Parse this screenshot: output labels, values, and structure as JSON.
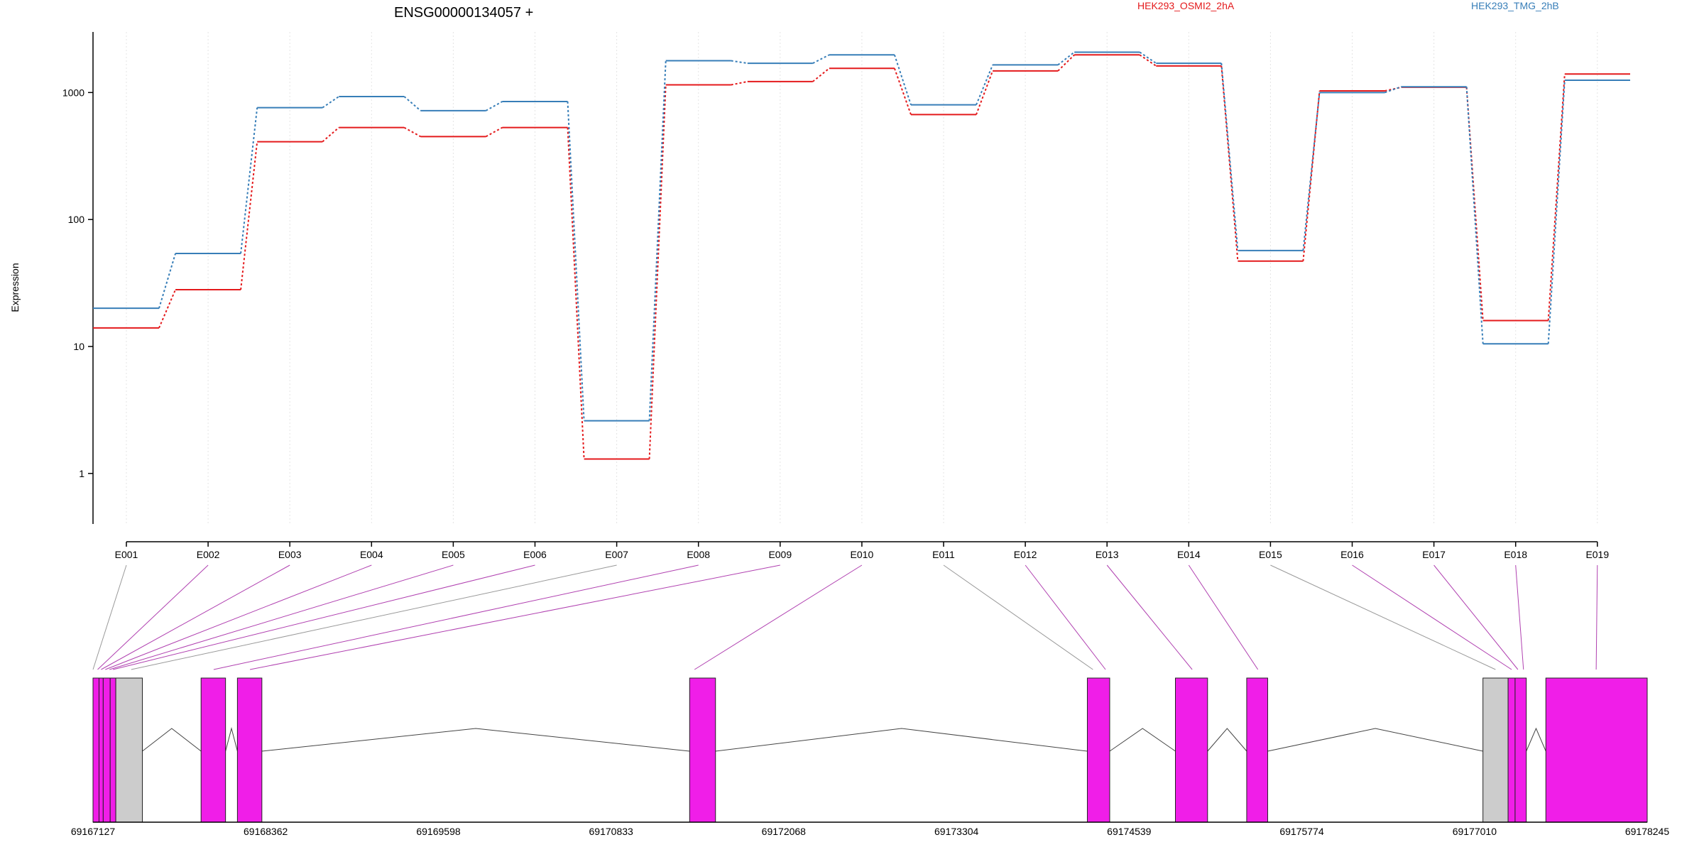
{
  "chart_data": {
    "type": "line",
    "title": "ENSG00000134057 +",
    "ylabel": "Expression",
    "xlabel": "",
    "y_scale": "log",
    "ylim": [
      0.4,
      3000
    ],
    "y_ticks": [
      1,
      10,
      100,
      1000
    ],
    "y_tick_labels": [
      "1",
      "10",
      "100",
      "1000"
    ],
    "grid": "vertical dotted at exons",
    "legend_placement": "top-right",
    "categories": [
      "E001",
      "E002",
      "E003",
      "E004",
      "E005",
      "E006",
      "E007",
      "E008",
      "E009",
      "E010",
      "E011",
      "E012",
      "E013",
      "E014",
      "E015",
      "E016",
      "E017",
      "E018",
      "E019"
    ],
    "series": [
      {
        "name": "HEK293_OSMI2_2hA",
        "color": "#e41a1c",
        "values": [
          14,
          28,
          410,
          530,
          450,
          530,
          1.3,
          1150,
          1220,
          1550,
          670,
          1480,
          1980,
          1620,
          47,
          1030,
          1100,
          16,
          1400
        ]
      },
      {
        "name": "HEK293_TMG_2hB",
        "color": "#377eb8",
        "values": [
          20,
          54,
          760,
          930,
          720,
          850,
          2.6,
          1780,
          1700,
          1980,
          800,
          1650,
          2080,
          1700,
          57,
          1000,
          1110,
          10.5,
          1250
        ]
      }
    ],
    "gene_model": {
      "x_range": [
        69167127,
        69178245
      ],
      "tick_labels": [
        "69167127",
        "69168362",
        "69169598",
        "69170833",
        "69172068",
        "69173304",
        "69174539",
        "69175774",
        "69177010",
        "69178245"
      ],
      "tick_values": [
        69167127,
        69168362,
        69169598,
        69170833,
        69172068,
        69173304,
        69174539,
        69175774,
        69177010,
        69178245
      ],
      "exons": [
        {
          "start": 69167127,
          "end": 69167170,
          "color": "#f01ee8"
        },
        {
          "start": 69167170,
          "end": 69167200,
          "color": "#f01ee8"
        },
        {
          "start": 69167200,
          "end": 69167250,
          "color": "#f01ee8"
        },
        {
          "start": 69167250,
          "end": 69167290,
          "color": "#f01ee8"
        },
        {
          "start": 69167290,
          "end": 69167480,
          "color": "#cccccc"
        },
        {
          "start": 69167900,
          "end": 69168075,
          "color": "#f01ee8"
        },
        {
          "start": 69168160,
          "end": 69168335,
          "color": "#f01ee8"
        },
        {
          "start": 69171395,
          "end": 69171580,
          "color": "#f01ee8"
        },
        {
          "start": 69174240,
          "end": 69174400,
          "color": "#f01ee8"
        },
        {
          "start": 69174870,
          "end": 69175100,
          "color": "#f01ee8"
        },
        {
          "start": 69175380,
          "end": 69175530,
          "color": "#f01ee8"
        },
        {
          "start": 69177070,
          "end": 69177250,
          "color": "#cccccc"
        },
        {
          "start": 69177250,
          "end": 69177300,
          "color": "#f01ee8"
        },
        {
          "start": 69177300,
          "end": 69177380,
          "color": "#f01ee8"
        },
        {
          "start": 69177520,
          "end": 69178245,
          "color": "#f01ee8"
        }
      ],
      "exon_links": [
        {
          "exon": "E001",
          "pos": 69167127,
          "color": "#999999"
        },
        {
          "exon": "E002",
          "pos": 69167160,
          "color": "#b040b0"
        },
        {
          "exon": "E003",
          "pos": 69167185,
          "color": "#b040b0"
        },
        {
          "exon": "E004",
          "pos": 69167215,
          "color": "#b040b0"
        },
        {
          "exon": "E005",
          "pos": 69167245,
          "color": "#b040b0"
        },
        {
          "exon": "E006",
          "pos": 69167270,
          "color": "#b040b0"
        },
        {
          "exon": "E007",
          "pos": 69167400,
          "color": "#999999"
        },
        {
          "exon": "E008",
          "pos": 69167990,
          "color": "#b040b0"
        },
        {
          "exon": "E009",
          "pos": 69168250,
          "color": "#b040b0"
        },
        {
          "exon": "E010",
          "pos": 69171430,
          "color": "#b040b0"
        },
        {
          "exon": "E011",
          "pos": 69174280,
          "color": "#999999"
        },
        {
          "exon": "E012",
          "pos": 69174370,
          "color": "#b040b0"
        },
        {
          "exon": "E013",
          "pos": 69174990,
          "color": "#b040b0"
        },
        {
          "exon": "E014",
          "pos": 69175460,
          "color": "#b040b0"
        },
        {
          "exon": "E015",
          "pos": 69177160,
          "color": "#999999"
        },
        {
          "exon": "E016",
          "pos": 69177275,
          "color": "#b040b0"
        },
        {
          "exon": "E017",
          "pos": 69177320,
          "color": "#b040b0"
        },
        {
          "exon": "E018",
          "pos": 69177360,
          "color": "#b040b0"
        },
        {
          "exon": "E019",
          "pos": 69177880,
          "color": "#b040b0"
        }
      ]
    }
  }
}
